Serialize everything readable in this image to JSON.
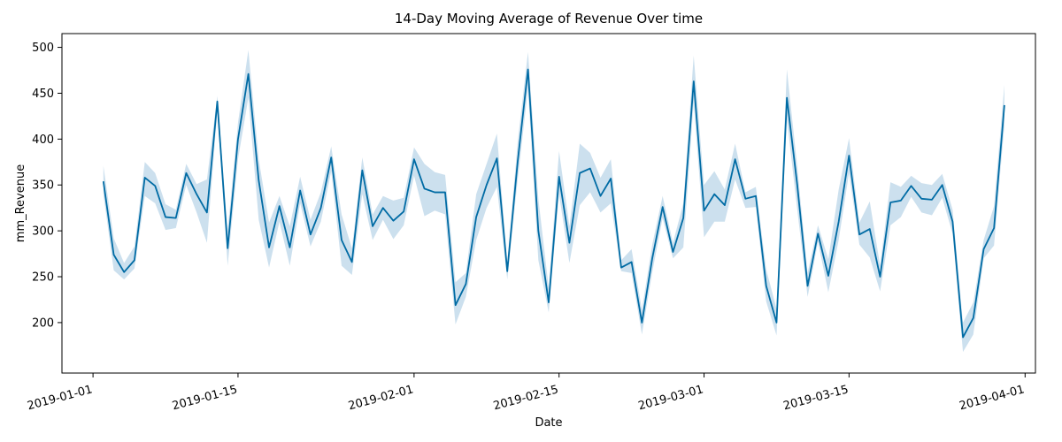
{
  "chart_data": {
    "type": "line",
    "title": "14-Day Moving Average of Revenue Over time",
    "xlabel": "Date",
    "ylabel": "mm_Revenue",
    "x_axis_type": "date",
    "x_start": "2019-01-02",
    "x_step_days": 1,
    "xlim": [
      "2018-12-29",
      "2019-04-02"
    ],
    "ylim": [
      145,
      515
    ],
    "x_ticks": [
      "2019-01-01",
      "2019-01-15",
      "2019-02-01",
      "2019-02-15",
      "2019-03-01",
      "2019-03-15",
      "2019-04-01"
    ],
    "y_ticks": [
      200,
      250,
      300,
      350,
      400,
      450,
      500
    ],
    "grid": false,
    "line_color": "#006ba4",
    "band_color": "#8fbbd9",
    "series": [
      {
        "values": [
          354,
          274,
          255,
          268,
          358,
          349,
          315,
          314,
          363,
          340,
          320,
          441,
          281,
          400,
          471,
          355,
          282,
          327,
          282,
          344,
          296,
          325,
          380,
          290,
          266,
          366,
          305,
          325,
          311,
          321,
          378,
          346,
          342,
          342,
          219,
          242,
          315,
          350,
          379,
          256,
          375,
          476,
          300,
          222,
          359,
          287,
          363,
          368,
          338,
          357,
          260,
          266,
          200,
          270,
          326,
          277,
          314,
          463,
          322,
          340,
          328,
          378,
          335,
          338,
          240,
          200,
          445,
          350,
          240,
          297,
          251,
          310,
          382,
          296,
          302,
          250,
          331,
          333,
          349,
          335,
          334,
          350,
          310,
          184,
          205,
          280,
          303,
          437
        ],
        "lower": [
          340,
          257,
          247,
          259,
          338,
          330,
          301,
          303,
          350,
          320,
          287,
          430,
          262,
          378,
          445,
          312,
          260,
          310,
          262,
          330,
          283,
          310,
          365,
          262,
          252,
          340,
          290,
          312,
          291,
          306,
          360,
          316,
          322,
          318,
          198,
          228,
          290,
          325,
          348,
          247,
          355,
          455,
          268,
          211,
          340,
          265,
          328,
          342,
          320,
          330,
          256,
          254,
          187,
          255,
          314,
          270,
          282,
          440,
          293,
          310,
          310,
          356,
          325,
          326,
          223,
          186,
          422,
          323,
          228,
          288,
          233,
          290,
          363,
          285,
          271,
          234,
          306,
          315,
          337,
          320,
          317,
          336,
          297,
          168,
          187,
          270,
          284,
          415
        ],
        "upper": [
          371,
          292,
          265,
          283,
          375,
          363,
          329,
          323,
          373,
          351,
          356,
          447,
          300,
          418,
          497,
          378,
          309,
          338,
          305,
          359,
          312,
          342,
          392,
          318,
          281,
          380,
          318,
          338,
          333,
          336,
          391,
          373,
          364,
          361,
          244,
          254,
          340,
          373,
          406,
          266,
          396,
          495,
          335,
          238,
          387,
          305,
          395,
          385,
          358,
          378,
          268,
          280,
          214,
          285,
          338,
          287,
          330,
          491,
          350,
          365,
          345,
          395,
          342,
          348,
          258,
          215,
          476,
          370,
          254,
          306,
          269,
          345,
          401,
          309,
          332,
          262,
          353,
          348,
          360,
          352,
          350,
          362,
          323,
          200,
          222,
          290,
          327,
          459
        ]
      }
    ]
  }
}
